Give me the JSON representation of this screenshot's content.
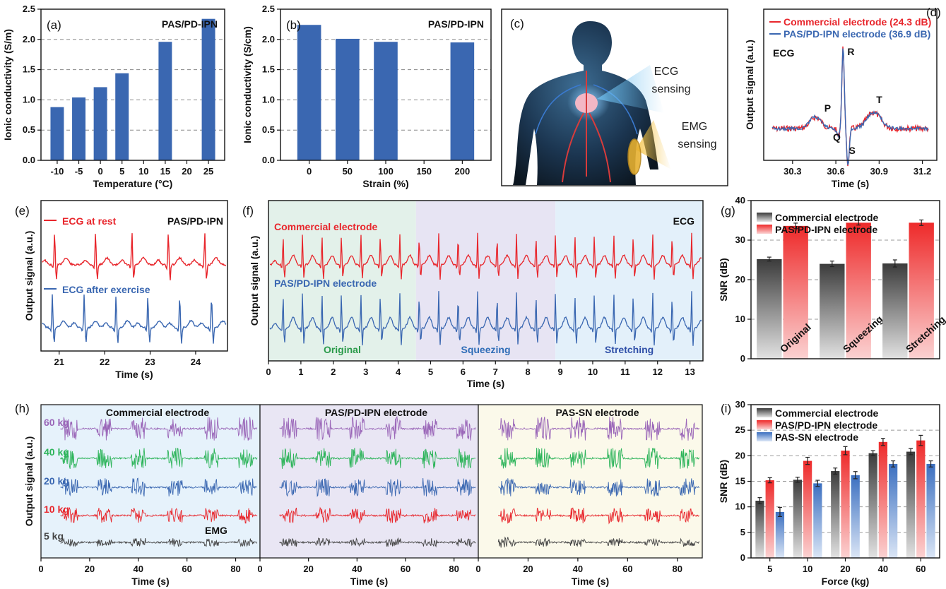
{
  "chart_data": [
    {
      "id": "a",
      "panel_label": "(a)",
      "type": "bar",
      "title": "PAS/PD-IPN",
      "xlabel": "Temperature (°C)",
      "ylabel": "Ionic conductivity (S/m)",
      "categories": [
        "-10",
        "-5",
        "0",
        "5",
        "10",
        "15",
        "20",
        "25"
      ],
      "values": [
        0.88,
        1.04,
        1.21,
        1.44,
        null,
        1.96,
        null,
        2.34
      ],
      "ylim": [
        0,
        2.5
      ],
      "yticks": [
        "0.0",
        "0.5",
        "1.0",
        "1.5",
        "2.0",
        "2.5"
      ],
      "color": "#3a67b1",
      "grid": "dashed horizontal"
    },
    {
      "id": "b",
      "panel_label": "(b)",
      "type": "bar",
      "title": "PAS/PD-IPN",
      "xlabel": "Strain (%)",
      "ylabel": "Ionic conductivity (S/cm)",
      "categories": [
        "0",
        "50",
        "100",
        "150",
        "200"
      ],
      "values": [
        2.24,
        2.01,
        1.96,
        null,
        1.95
      ],
      "ylim": [
        0,
        2.5
      ],
      "yticks": [
        "0.0",
        "0.5",
        "1.0",
        "1.5",
        "2.0",
        "2.5"
      ],
      "color": "#3a67b1",
      "grid": "dashed horizontal"
    },
    {
      "id": "d",
      "panel_label": "(d)",
      "type": "line",
      "xlabel": "Time (s)",
      "ylabel": "Output signal (a.u.)",
      "xticks": [
        "30.3",
        "30.6",
        "30.9",
        "31.2"
      ],
      "xlim": [
        30.1,
        31.3
      ],
      "annotation": "ECG",
      "wave_labels": [
        "P",
        "Q",
        "R",
        "S",
        "T"
      ],
      "series": [
        {
          "name": "Commercial electrode (24.3 dB)",
          "color": "#e8262c"
        },
        {
          "name": "PAS/PD-IPN electrode (36.9 dB)",
          "color": "#3a67b1"
        }
      ]
    },
    {
      "id": "e",
      "panel_label": "(e)",
      "type": "line",
      "title": "PAS/PD-IPN",
      "xlabel": "Time (s)",
      "ylabel": "Output signal (a.u.)",
      "xticks": [
        "21",
        "22",
        "23",
        "24"
      ],
      "xlim": [
        20.6,
        24.7
      ],
      "series": [
        {
          "name": "ECG at rest",
          "color": "#e8262c",
          "beats": [
            20.9,
            21.8,
            22.6,
            23.4,
            24.2
          ]
        },
        {
          "name": "ECG after exercise",
          "color": "#3a67b1",
          "beats": [
            20.85,
            21.55,
            22.25,
            22.95,
            23.65,
            24.35
          ]
        }
      ]
    },
    {
      "id": "f",
      "panel_label": "(f)",
      "type": "line",
      "annotation": "ECG",
      "xlabel": "Time (s)",
      "ylabel": "Output signal (a.u.)",
      "xticks": [
        "0",
        "1",
        "2",
        "3",
        "4",
        "5",
        "6",
        "7",
        "8",
        "9",
        "10",
        "11",
        "12",
        "13"
      ],
      "xlim": [
        0,
        13.4
      ],
      "regions": [
        {
          "label": "Original",
          "start": 0,
          "end": 4.55,
          "color": "#e3f1ea",
          "text_color": "#2a9a4a"
        },
        {
          "label": "Squeezing",
          "start": 4.55,
          "end": 8.85,
          "color": "#e7e4f3",
          "text_color": "#2f6db7"
        },
        {
          "label": "Stretching",
          "start": 8.85,
          "end": 13.4,
          "color": "#e3f0fa",
          "text_color": "#2f4fa8"
        }
      ],
      "series": [
        {
          "name": "Commercial electrode",
          "color": "#e8262c"
        },
        {
          "name": "PAS/PD-IPN electrode",
          "color": "#3a67b1"
        }
      ]
    },
    {
      "id": "g",
      "panel_label": "(g)",
      "type": "bar",
      "xlabel": "",
      "ylabel": "SNR (dB)",
      "categories": [
        "Original",
        "Squeezing",
        "Stretching"
      ],
      "ylim": [
        0,
        40
      ],
      "yticks": [
        "0",
        "10",
        "20",
        "30",
        "40"
      ],
      "series": [
        {
          "name": "Commercial electrode",
          "values": [
            25.2,
            24.0,
            24.1
          ],
          "errors": [
            0.5,
            0.7,
            0.9
          ],
          "color": "#555555"
        },
        {
          "name": "PAS/PD-IPN electrode",
          "values": [
            33.6,
            34.4,
            34.4
          ],
          "errors": [
            0.7,
            0.6,
            0.7
          ],
          "color": "#f03a3a"
        }
      ]
    },
    {
      "id": "h",
      "panel_label": "(h)",
      "type": "line",
      "xlabel": "Time (s)",
      "ylabel": "Output signal (a.u.)",
      "xticks": [
        "0",
        "20",
        "40",
        "60",
        "80"
      ],
      "xlim": [
        0,
        90
      ],
      "annotation": "EMG",
      "subpanels": [
        {
          "title": "Commercial electrode",
          "bg": "#e6f2fb"
        },
        {
          "title": "PAS/PD-IPN electrode",
          "bg": "#e9e6f4"
        },
        {
          "title": "PAS-SN electrode",
          "bg": "#fbf9ea"
        }
      ],
      "bursts_s": [
        12,
        26,
        40,
        55,
        70,
        84
      ],
      "series": [
        {
          "name": "60 kg",
          "color": "#9a66b8"
        },
        {
          "name": "40 kg",
          "color": "#2db45a"
        },
        {
          "name": "20 kg",
          "color": "#3a67b1"
        },
        {
          "name": "10 kg",
          "color": "#e8262c"
        },
        {
          "name": "5 kg",
          "color": "#444444"
        }
      ]
    },
    {
      "id": "i",
      "panel_label": "(i)",
      "type": "bar",
      "xlabel": "Force (kg)",
      "ylabel": "SNR (dB)",
      "categories": [
        "5",
        "10",
        "20",
        "40",
        "60"
      ],
      "ylim": [
        0,
        30
      ],
      "yticks": [
        "0",
        "5",
        "10",
        "15",
        "20",
        "25",
        "30"
      ],
      "series": [
        {
          "name": "Commercial electrode",
          "values": [
            11.2,
            15.3,
            17.0,
            20.5,
            20.8
          ],
          "errors": [
            0.6,
            0.5,
            0.6,
            0.5,
            0.6
          ],
          "color": "#555555"
        },
        {
          "name": "PAS/PD-IPN electrode",
          "values": [
            15.2,
            19.0,
            21.0,
            22.7,
            23.0
          ],
          "errors": [
            0.5,
            0.7,
            0.8,
            0.7,
            1.0
          ],
          "color": "#f03a3a"
        },
        {
          "name": "PAS-SN electrode",
          "values": [
            9.0,
            14.6,
            16.2,
            18.4,
            18.4
          ],
          "errors": [
            0.9,
            0.6,
            0.7,
            0.6,
            0.6
          ],
          "color": "#4a7fc8"
        }
      ]
    }
  ],
  "illustration": {
    "panel_label": "(c)",
    "labels": [
      "ECG",
      "sensing",
      "EMG",
      "sensing"
    ]
  }
}
